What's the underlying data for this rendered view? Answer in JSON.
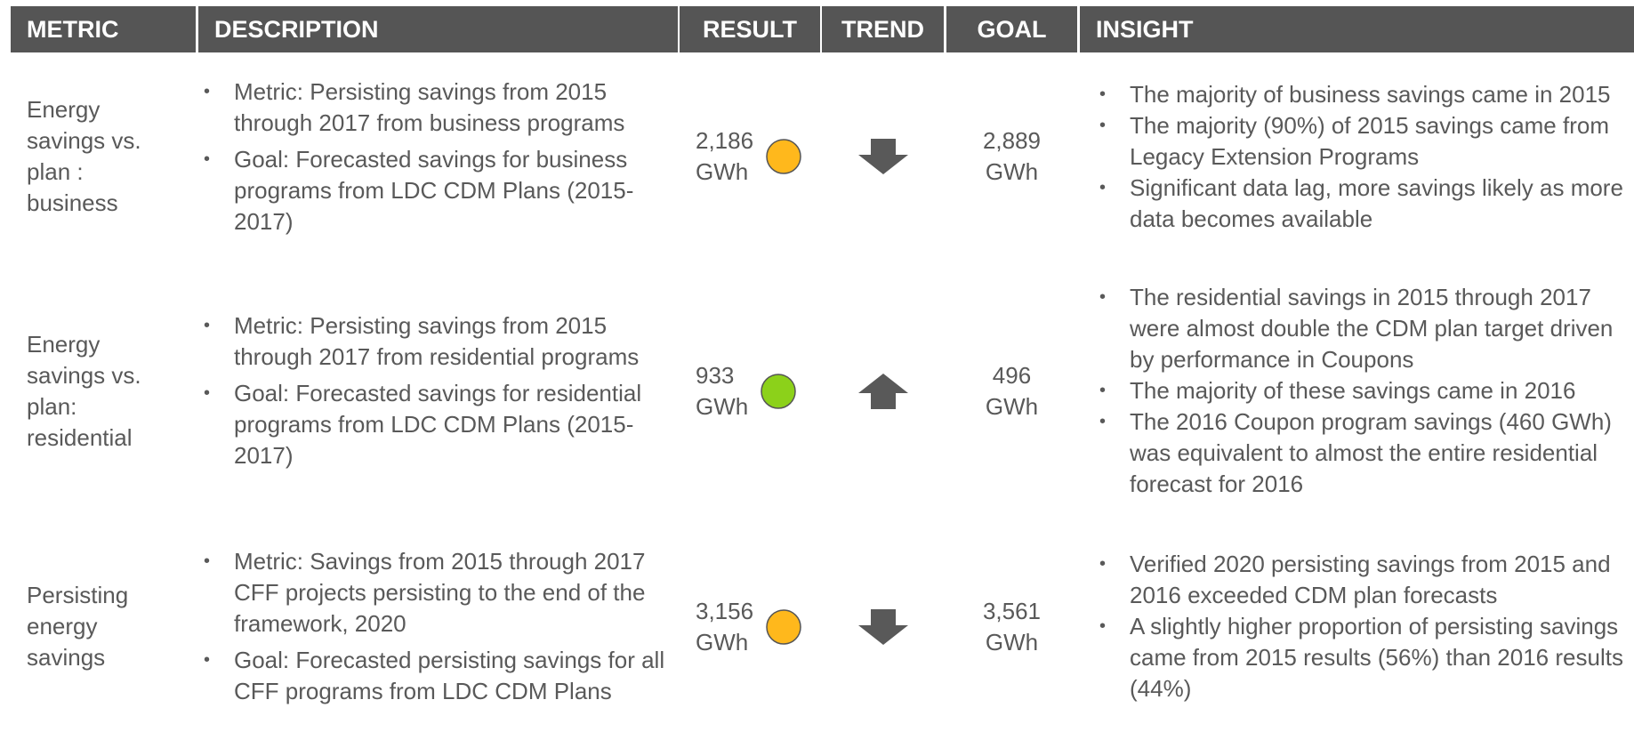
{
  "table": {
    "header": [
      "METRIC",
      "DESCRIPTION",
      "RESULT",
      "TREND",
      "GOAL",
      "INSIGHT"
    ],
    "rows": [
      {
        "metric": "Energy savings vs. plan : business",
        "description": [
          "Metric: Persisting savings from 2015 through 2017 from business programs",
          "Goal: Forecasted savings for business programs from LDC CDM Plans (2015-2017)"
        ],
        "result": "2,186",
        "result_unit": "GWh",
        "status_color": "#ffb81c",
        "trend": "down",
        "goal": "2,889",
        "goal_unit": "GWh",
        "insight": [
          "The majority of business savings came in 2015",
          "The majority (90%) of 2015 savings came from Legacy Extension Programs",
          "Significant data lag, more savings likely as more data becomes available"
        ]
      },
      {
        "metric": "Energy savings vs. plan: residential",
        "description": [
          "Metric: Persisting savings from 2015 through 2017 from residential programs",
          "Goal: Forecasted savings for residential programs from LDC CDM Plans (2015-2017)"
        ],
        "result": "933",
        "result_unit": "GWh",
        "status_color": "#8cd11a",
        "trend": "up",
        "goal": "496",
        "goal_unit": "GWh",
        "insight": [
          "The residential savings in 2015 through 2017 were almost double the CDM plan target driven by performance in Coupons",
          "The majority of these savings came in 2016",
          "The 2016 Coupon program savings (460 GWh) was equivalent to almost the entire residential forecast for 2016"
        ]
      },
      {
        "metric": "Persisting energy savings",
        "description": [
          "Metric: Savings from 2015 through 2017 CFF projects persisting to the end of the framework, 2020",
          "Goal: Forecasted persisting savings for all CFF programs from LDC CDM Plans"
        ],
        "result": "3,156",
        "result_unit": "GWh",
        "status_color": "#ffb81c",
        "trend": "down",
        "goal": "3,561",
        "goal_unit": "GWh",
        "insight": [
          "Verified 2020 persisting savings from 2015 and 2016 exceeded CDM plan forecasts",
          "A slightly higher proportion of persisting savings came from 2015 results (56%) than 2016 results (44%)"
        ]
      }
    ]
  }
}
